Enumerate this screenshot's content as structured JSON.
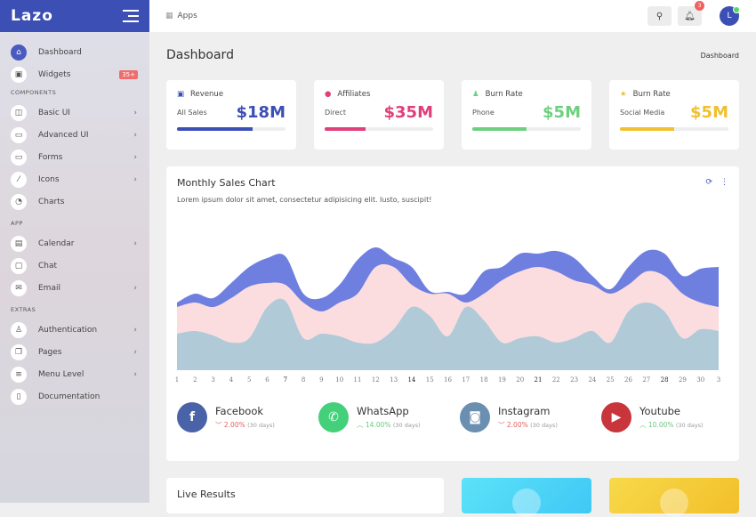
{
  "app": {
    "logo": "Lazo"
  },
  "sidebar": {
    "items": [
      {
        "label": "Dashboard",
        "icon": "home-icon",
        "glyph": "⌂",
        "active": true
      },
      {
        "label": "Widgets",
        "icon": "layout-icon",
        "glyph": "▣",
        "badge": "35+"
      }
    ],
    "sections": [
      {
        "title": "COMPONENTS",
        "items": [
          {
            "label": "Basic UI",
            "icon": "layout-icon",
            "glyph": "◫",
            "chevron": "›"
          },
          {
            "label": "Advanced UI",
            "icon": "wallet-icon",
            "glyph": "▭",
            "chevron": "›"
          },
          {
            "label": "Forms",
            "icon": "wallet-icon",
            "glyph": "▭",
            "chevron": "›"
          },
          {
            "label": "Icons",
            "icon": "brush-icon",
            "glyph": "⁄",
            "chevron": "›"
          },
          {
            "label": "Charts",
            "icon": "pie-chart-icon",
            "glyph": "◔"
          }
        ]
      },
      {
        "title": "APP",
        "items": [
          {
            "label": "Calendar",
            "icon": "calendar-icon",
            "glyph": "▤",
            "chevron": "›"
          },
          {
            "label": "Chat",
            "icon": "chat-icon",
            "glyph": "▢"
          },
          {
            "label": "Email",
            "icon": "mail-icon",
            "glyph": "✉",
            "chevron": "›"
          }
        ]
      },
      {
        "title": "EXTRAS",
        "items": [
          {
            "label": "Authentication",
            "icon": "user-icon",
            "glyph": "♙",
            "chevron": "›"
          },
          {
            "label": "Pages",
            "icon": "copy-icon",
            "glyph": "❐",
            "chevron": "›"
          },
          {
            "label": "Menu Level",
            "icon": "menu-icon",
            "glyph": "≡",
            "chevron": "›"
          },
          {
            "label": "Documentation",
            "icon": "file-icon",
            "glyph": "▯"
          }
        ]
      }
    ]
  },
  "topbar": {
    "apps_label": "Apps",
    "notification_count": "3",
    "avatar_initial": "L"
  },
  "page": {
    "title": "Dashboard",
    "breadcrumb": "Dashboard"
  },
  "stats": [
    {
      "label": "Revenue",
      "sub": "All Sales",
      "value": "$18M",
      "color": "#3c4fb5",
      "icon": "money-icon",
      "glyph": "▣",
      "progress": 70
    },
    {
      "label": "Affiliates",
      "sub": "Direct",
      "value": "$35M",
      "color": "#e0407a",
      "icon": "globe-icon",
      "glyph": "●",
      "progress": 38
    },
    {
      "label": "Burn Rate",
      "sub": "Phone",
      "value": "$5M",
      "color": "#6dd07e",
      "icon": "user-icon",
      "glyph": "♟",
      "progress": 50
    },
    {
      "label": "Burn Rate",
      "sub": "Social Media",
      "value": "$5M",
      "color": "#f0c030",
      "icon": "star-icon",
      "glyph": "★",
      "progress": 50
    }
  ],
  "chart_card": {
    "title": "Monthly Sales Chart",
    "description": "Lorem ipsum dolor sit amet, consectetur adipisicing elit. Iusto, suscipit!"
  },
  "chart_data": {
    "type": "area",
    "stacked": true,
    "grid": false,
    "categories": [
      "1",
      "2",
      "3",
      "4",
      "5",
      "6",
      "7",
      "8",
      "9",
      "10",
      "11",
      "12",
      "13",
      "14",
      "15",
      "16",
      "17",
      "18",
      "19",
      "20",
      "21",
      "22",
      "23",
      "24",
      "25",
      "26",
      "27",
      "28",
      "29",
      "30",
      "3"
    ],
    "ylim": [
      0,
      170
    ],
    "series": [
      {
        "color": "#b0cad8",
        "values": [
          41,
          44,
          39,
          31,
          36,
          71,
          78,
          36,
          41,
          38,
          31,
          31,
          46,
          71,
          61,
          38,
          71,
          56,
          31,
          36,
          38,
          31,
          36,
          44,
          31,
          66,
          76,
          66,
          36,
          46,
          44
        ]
      },
      {
        "color": "#fbdde0",
        "values": [
          30,
          32,
          32,
          50,
          58,
          27,
          18,
          40,
          25,
          38,
          55,
          85,
          70,
          25,
          25,
          48,
          5,
          30,
          70,
          75,
          78,
          80,
          65,
          52,
          55,
          30,
          35,
          40,
          50,
          30,
          27
        ]
      },
      {
        "color": "#6e7fe0",
        "values": [
          5,
          10,
          10,
          17,
          22,
          28,
          32,
          10,
          15,
          20,
          38,
          22,
          10,
          20,
          3,
          2,
          10,
          25,
          15,
          20,
          15,
          23,
          25,
          10,
          5,
          20,
          23,
          25,
          20,
          38,
          45
        ]
      }
    ]
  },
  "social": [
    {
      "name": "Facebook",
      "change": "2.00%",
      "period": "(30 days)",
      "trend": "down",
      "color": "#4a62a8",
      "icon": "facebook-icon",
      "glyph": "f"
    },
    {
      "name": "WhatsApp",
      "change": "14.00%",
      "period": "(30 days)",
      "trend": "up",
      "color": "#44d07a",
      "icon": "whatsapp-icon",
      "glyph": "✆"
    },
    {
      "name": "Instagram",
      "change": "2.00%",
      "period": "(30 days)",
      "trend": "down",
      "color": "#6a8fb0",
      "icon": "instagram-icon",
      "glyph": "◙"
    },
    {
      "name": "Youtube",
      "change": "10.00%",
      "period": "(30 days)",
      "trend": "up",
      "color": "#c8353a",
      "icon": "youtube-icon",
      "glyph": "▶"
    }
  ],
  "live": {
    "title": "Live Results"
  }
}
